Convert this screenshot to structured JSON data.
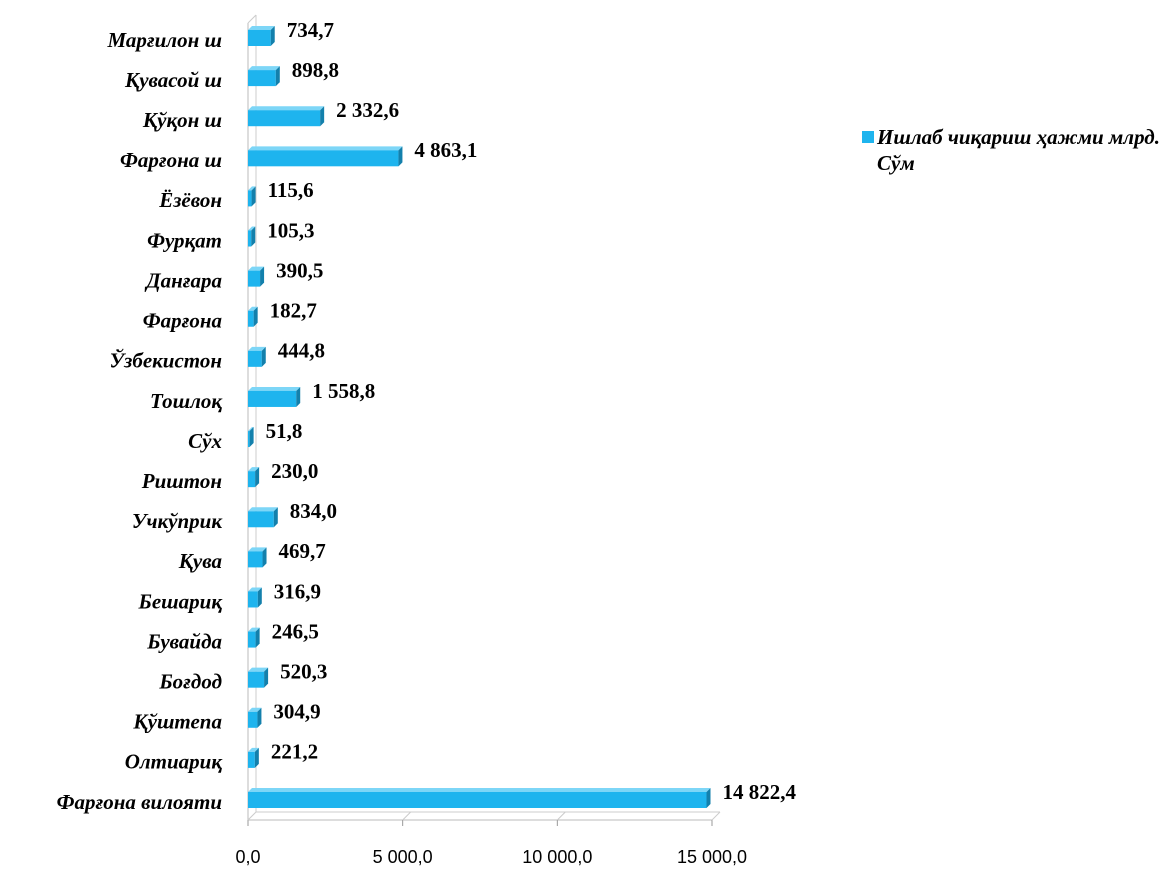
{
  "chart_data": {
    "type": "bar",
    "orientation": "horizontal",
    "categories": [
      "Марғилон ш",
      "Қувасой ш",
      "Қўқон ш",
      "Фарғона ш",
      "Ёзёвон",
      "Фурқат",
      "Данғара",
      "Фарғона",
      "Ўзбекистон",
      "Тошлоқ",
      "Сўх",
      "Риштон",
      "Учкўприк",
      "Қува",
      "Бешариқ",
      "Бувайда",
      "Боғдод",
      "Қўштепа",
      "Олтиариқ",
      "Фарғона вилояти"
    ],
    "series": [
      {
        "name": "Ишлаб чиқариш ҳажми млрд. Сўм",
        "color": "#1eb4ee",
        "values": [
          734.7,
          898.8,
          2332.6,
          4863.1,
          115.6,
          105.3,
          390.5,
          182.7,
          444.8,
          1558.8,
          51.8,
          230.0,
          834.0,
          469.7,
          316.9,
          246.5,
          520.3,
          304.9,
          221.2,
          14822.4
        ],
        "value_labels": [
          "734,7",
          "898,8",
          "2 332,6",
          "4 863,1",
          "115,6",
          "105,3",
          "390,5",
          "182,7",
          "444,8",
          "1 558,8",
          "51,8",
          "230,0",
          "834,0",
          "469,7",
          "316,9",
          "246,5",
          "520,3",
          "304,9",
          "221,2",
          "14 822,4"
        ]
      }
    ],
    "xlim": [
      0,
      15000
    ],
    "xticks": [
      {
        "value": 0,
        "label": "0,0"
      },
      {
        "value": 5000,
        "label": "5 000,0"
      },
      {
        "value": 10000,
        "label": "10 000,0"
      },
      {
        "value": 15000,
        "label": "15 000,0"
      }
    ],
    "legend": "right"
  }
}
